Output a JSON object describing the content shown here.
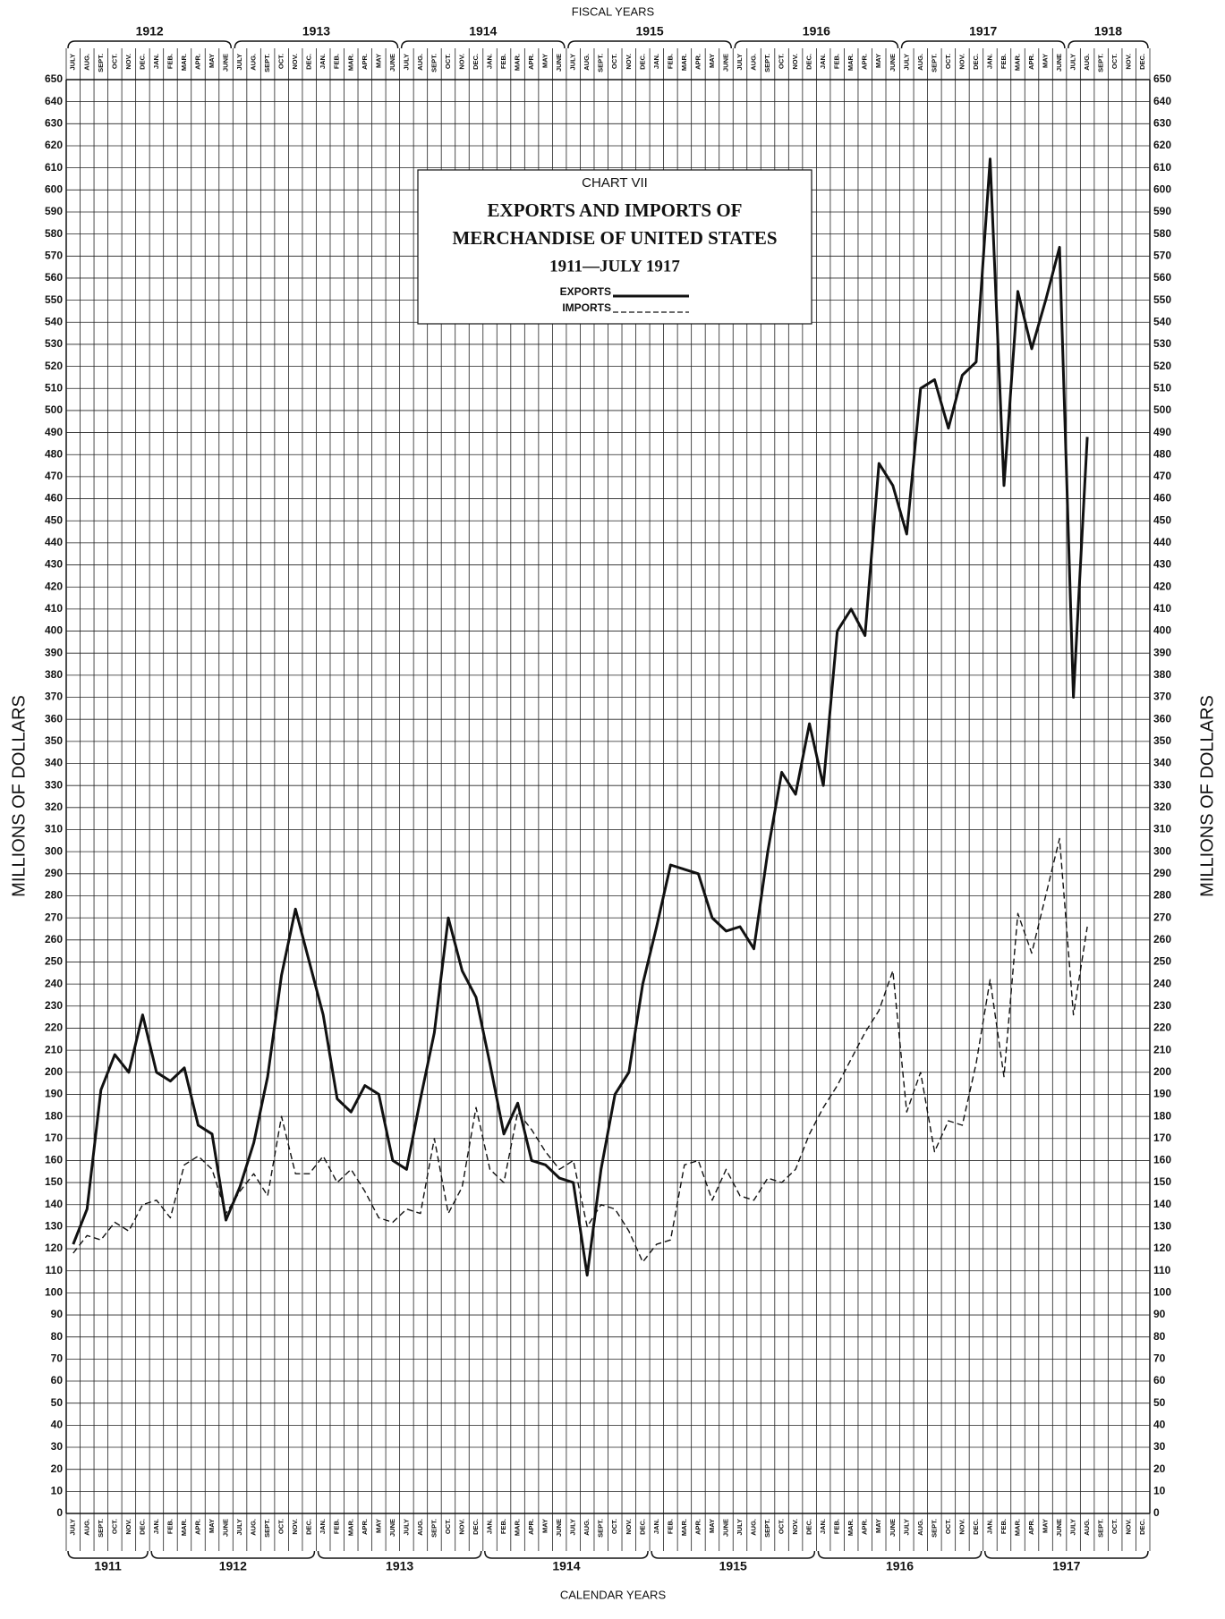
{
  "chart_data": {
    "type": "line",
    "chart_label": "CHART VII",
    "title_lines": [
      "EXPORTS AND IMPORTS OF",
      "MERCHANDISE OF UNITED STATES",
      "1911—JULY 1917"
    ],
    "ylabel": "MILLIONS OF DOLLARS",
    "top_group_label": "FISCAL YEARS",
    "bottom_group_label": "CALENDAR YEARS",
    "fiscal_years": [
      "1912",
      "1913",
      "1914",
      "1915",
      "1916",
      "1917",
      "1918"
    ],
    "calendar_years": [
      "1911",
      "1912",
      "1913",
      "1914",
      "1915",
      "1916",
      "1917"
    ],
    "categories": [
      "JULY",
      "AUG.",
      "SEPT.",
      "OCT.",
      "NOV.",
      "DEC.",
      "JAN.",
      "FEB.",
      "MAR.",
      "APR.",
      "MAY",
      "JUNE",
      "JULY",
      "AUG.",
      "SEPT.",
      "OCT.",
      "NOV.",
      "DEC.",
      "JAN.",
      "FEB.",
      "MAR.",
      "APR.",
      "MAY",
      "JUNE",
      "JULY",
      "AUG.",
      "SEPT.",
      "OCT.",
      "NOV.",
      "DEC.",
      "JAN.",
      "FEB.",
      "MAR.",
      "APR.",
      "MAY",
      "JUNE",
      "JULY",
      "AUG.",
      "SEPT.",
      "OCT.",
      "NOV.",
      "DEC.",
      "JAN.",
      "FEB.",
      "MAR.",
      "APR.",
      "MAY",
      "JUNE",
      "JULY",
      "AUG.",
      "SEPT.",
      "OCT.",
      "NOV.",
      "DEC.",
      "JAN.",
      "FEB.",
      "MAR.",
      "APR.",
      "MAY",
      "JUNE",
      "JULY",
      "AUG.",
      "SEPT.",
      "OCT.",
      "NOV.",
      "DEC.",
      "JAN.",
      "FEB.",
      "MAR.",
      "APR.",
      "MAY",
      "JUNE",
      "JULY",
      "AUG.",
      "SEPT.",
      "OCT.",
      "NOV.",
      "DEC."
    ],
    "series": [
      {
        "name": "EXPORTS",
        "color": "#111111",
        "dashed": false,
        "values": [
          122,
          138,
          192,
          208,
          200,
          226,
          200,
          196,
          202,
          176,
          172,
          133,
          148,
          168,
          198,
          244,
          274,
          250,
          226,
          188,
          182,
          194,
          190,
          160,
          156,
          188,
          218,
          270,
          246,
          234,
          204,
          172,
          186,
          160,
          158,
          152,
          150,
          108,
          156,
          190,
          200,
          240,
          266,
          294,
          292,
          290,
          270,
          264,
          266,
          256,
          300,
          336,
          326,
          358,
          330,
          400,
          410,
          398,
          476,
          466,
          444,
          510,
          514,
          492,
          516,
          522,
          614,
          466,
          554,
          528,
          550,
          574,
          370,
          488,
          null,
          null,
          null,
          null
        ]
      },
      {
        "name": "IMPORTS",
        "color": "#111111",
        "dashed": true,
        "values": [
          118,
          126,
          124,
          132,
          128,
          140,
          142,
          134,
          158,
          162,
          156,
          136,
          146,
          154,
          144,
          180,
          154,
          154,
          162,
          150,
          156,
          146,
          134,
          132,
          138,
          136,
          170,
          136,
          148,
          184,
          156,
          150,
          182,
          174,
          164,
          156,
          160,
          130,
          140,
          138,
          128,
          114,
          122,
          124,
          158,
          160,
          142,
          156,
          144,
          142,
          152,
          150,
          156,
          172,
          184,
          194,
          206,
          218,
          228,
          246,
          182,
          200,
          164,
          178,
          176,
          204,
          242,
          198,
          272,
          254,
          280,
          306,
          226,
          266,
          null,
          null,
          null,
          null
        ]
      }
    ],
    "ylim": [
      0,
      650
    ],
    "yticks": [
      0,
      10,
      20,
      30,
      40,
      50,
      60,
      70,
      80,
      90,
      100,
      110,
      120,
      130,
      140,
      150,
      160,
      170,
      180,
      190,
      200,
      210,
      220,
      230,
      240,
      250,
      260,
      270,
      280,
      290,
      300,
      310,
      320,
      330,
      340,
      350,
      360,
      370,
      380,
      390,
      400,
      410,
      420,
      430,
      440,
      450,
      460,
      470,
      480,
      490,
      500,
      510,
      520,
      530,
      540,
      550,
      560,
      570,
      580,
      590,
      600,
      610,
      620,
      630,
      640,
      650
    ],
    "grid": true
  }
}
